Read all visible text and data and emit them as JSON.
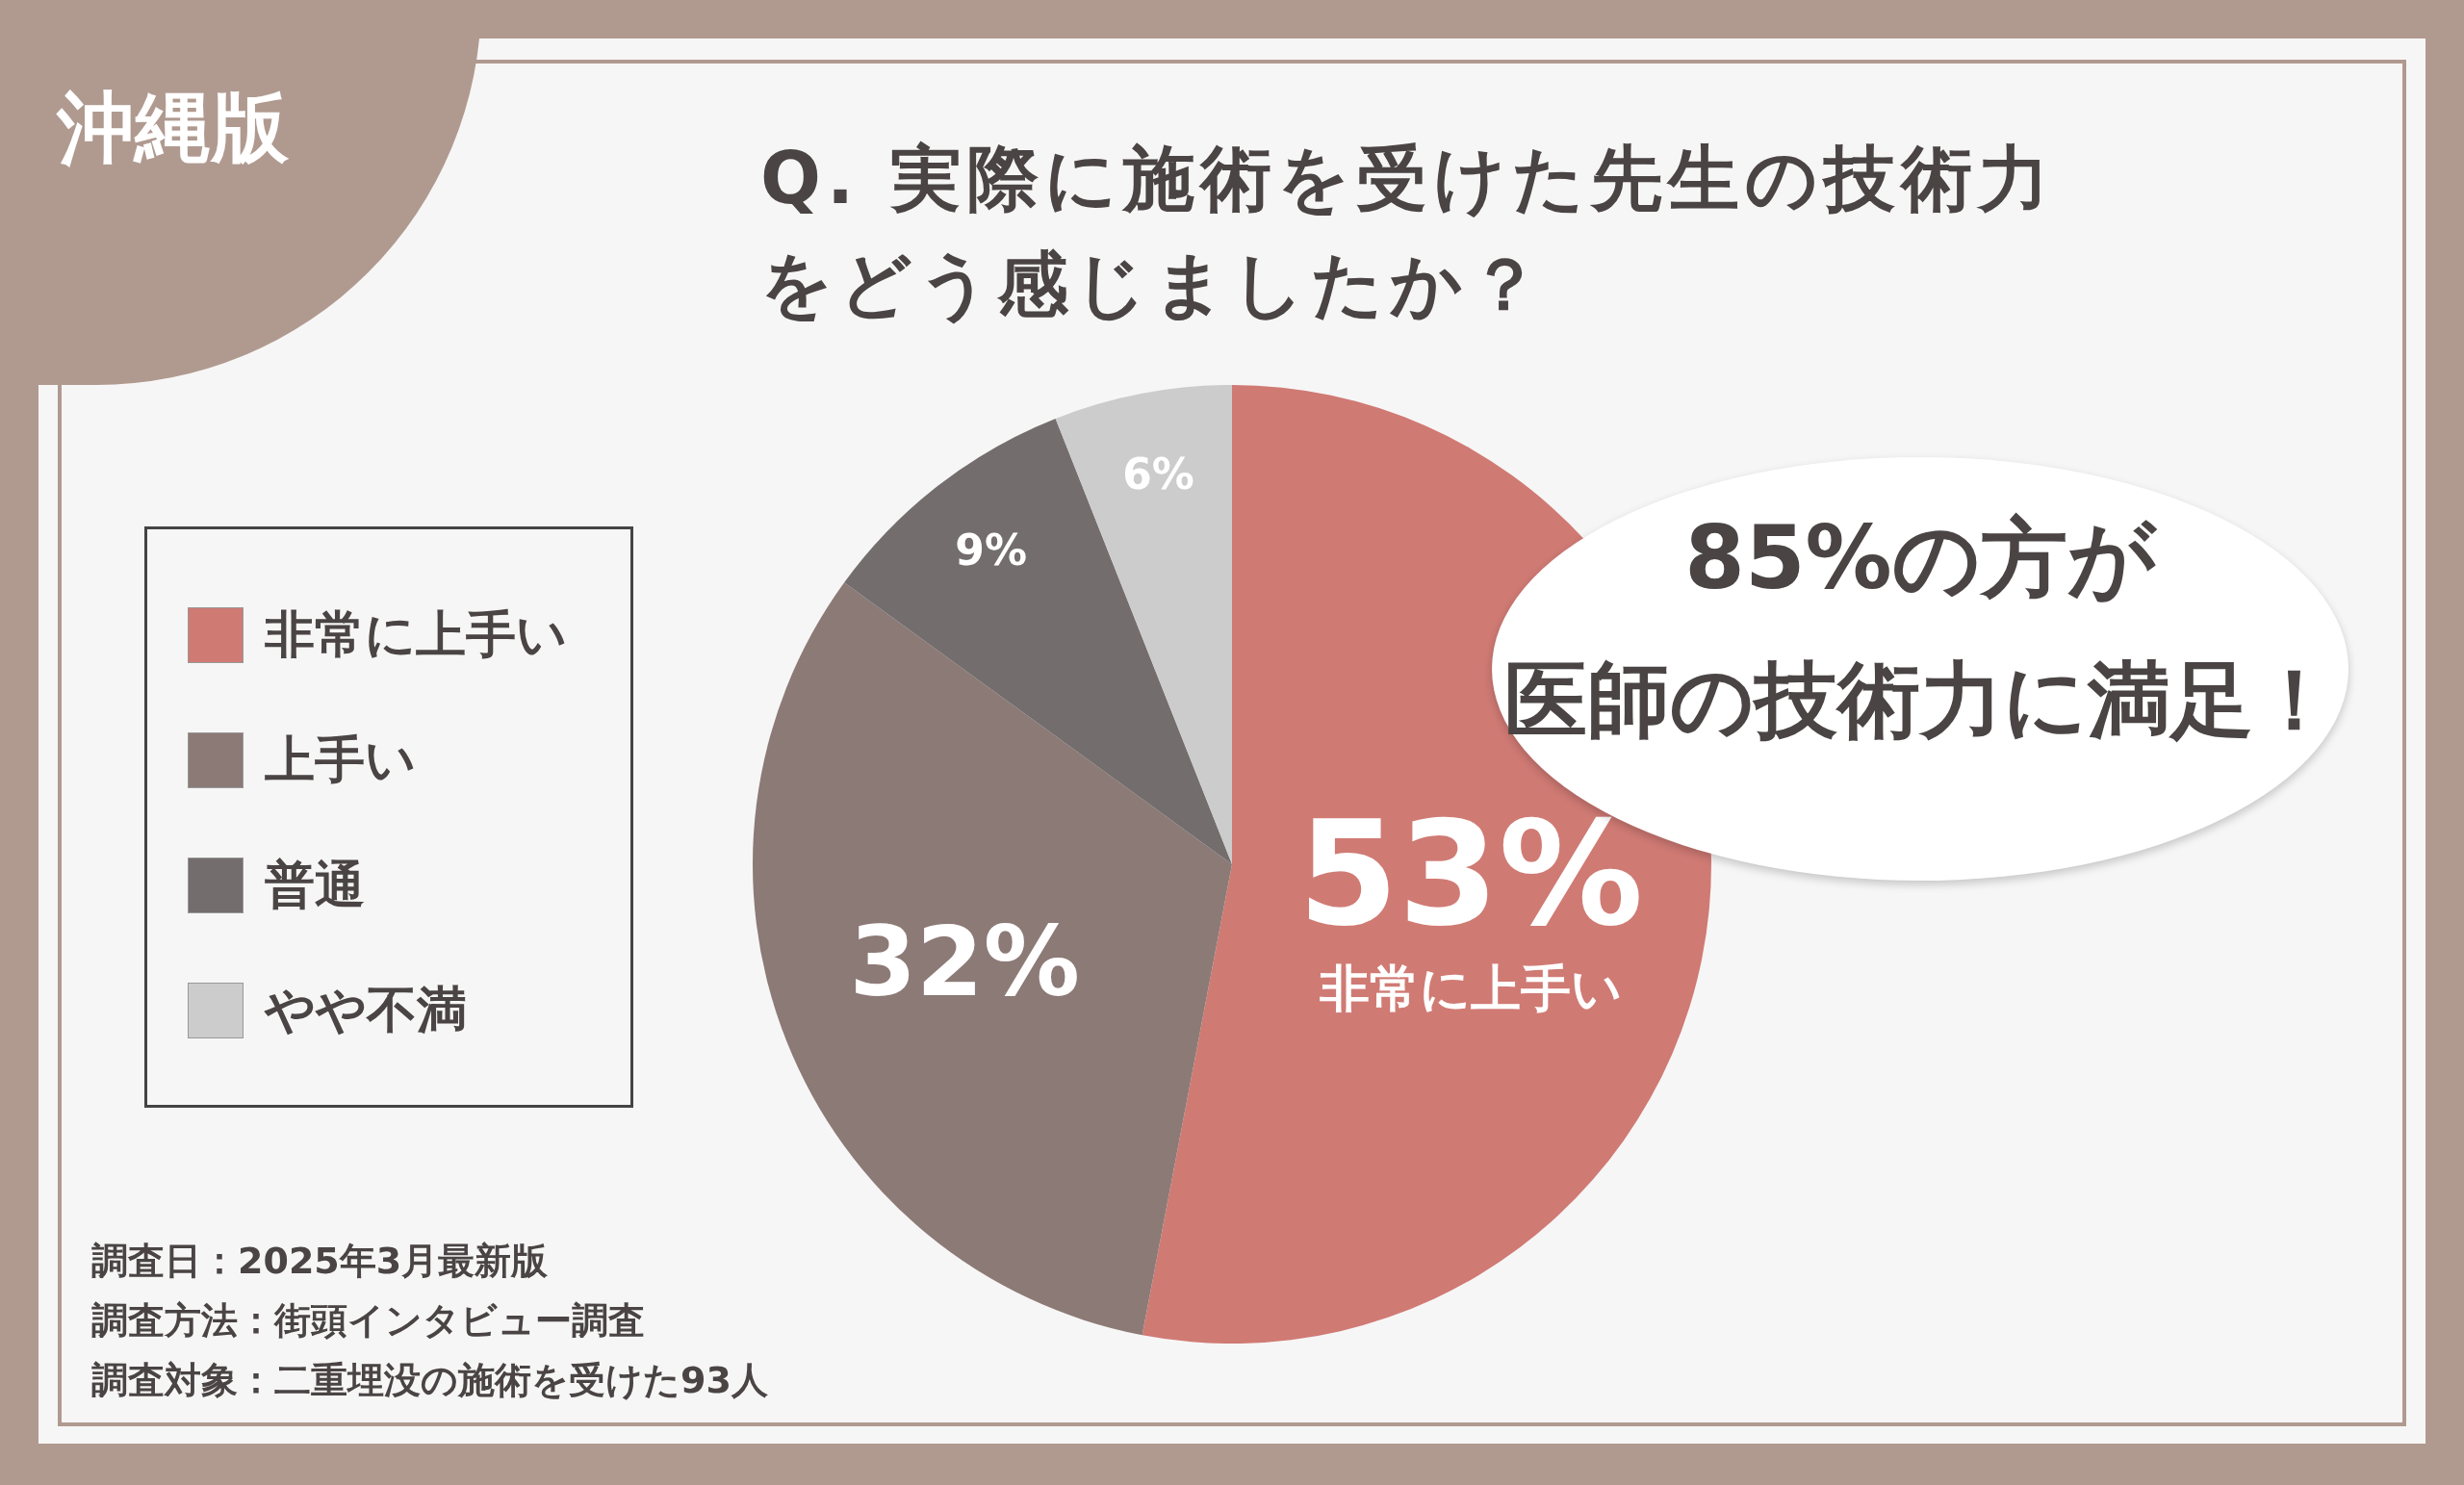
{
  "chart_data": {
    "type": "pie",
    "title": "Q. 実際に施術を受けた先生の技術力をどう感じましたか？",
    "categories": [
      "非常に上手い",
      "上手い",
      "普通",
      "やや不満"
    ],
    "values": [
      53,
      32,
      9,
      6
    ],
    "colors": [
      "#d07a74",
      "#8c7a76",
      "#736e6d",
      "#cccccc"
    ],
    "value_labels": [
      "53%",
      "32%",
      "9%",
      "6%"
    ],
    "legend": "left",
    "annotations": [
      "沖縄版",
      "85%の方が",
      "医師の技術力に満足！",
      "非常に上手い",
      "調査日：2025年3月最新版",
      "調査方法：街頭インタビュー調査",
      "調査対象：二重埋没の施術を受けた93人"
    ]
  }
}
